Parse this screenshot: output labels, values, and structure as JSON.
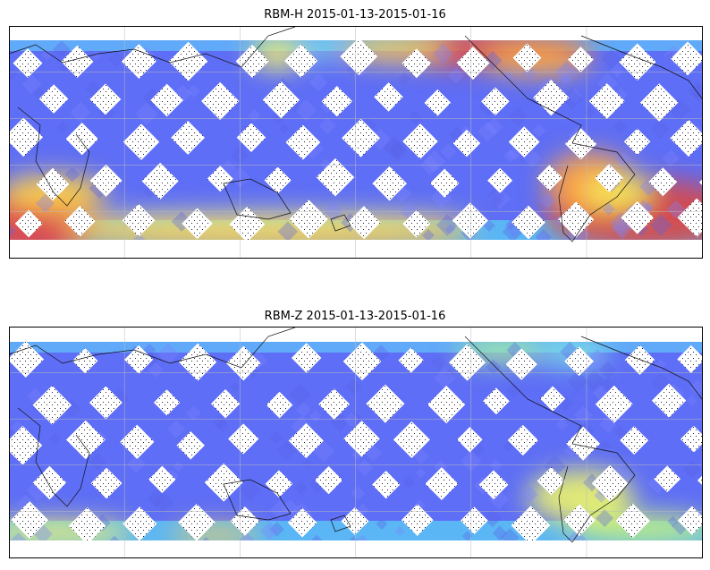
{
  "panels": [
    {
      "title": "RBM-H 2015-01-13-2015-01-16"
    },
    {
      "title": "RBM-Z 2015-01-13-2015-01-16"
    }
  ]
}
